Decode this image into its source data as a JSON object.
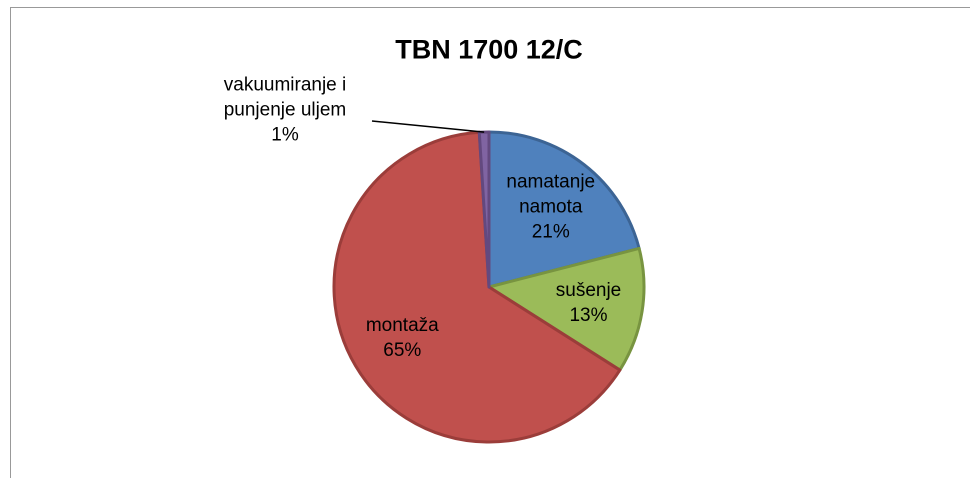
{
  "chart_data": {
    "type": "pie",
    "title": "TBN 1700 12/C",
    "categories": [
      "namatanje namota",
      "sušenje",
      "montaža",
      "vakuumiranje i punjenje uljem"
    ],
    "values": [
      21,
      13,
      65,
      1
    ],
    "value_labels": [
      "21%",
      "13%",
      "65%",
      "1%"
    ],
    "colors": [
      "#4f81bd",
      "#9bbb59",
      "#c0504d",
      "#8064a2"
    ],
    "edgecolors": [
      "#3c6494",
      "#789440",
      "#9b3d3a",
      "#63497f"
    ]
  }
}
